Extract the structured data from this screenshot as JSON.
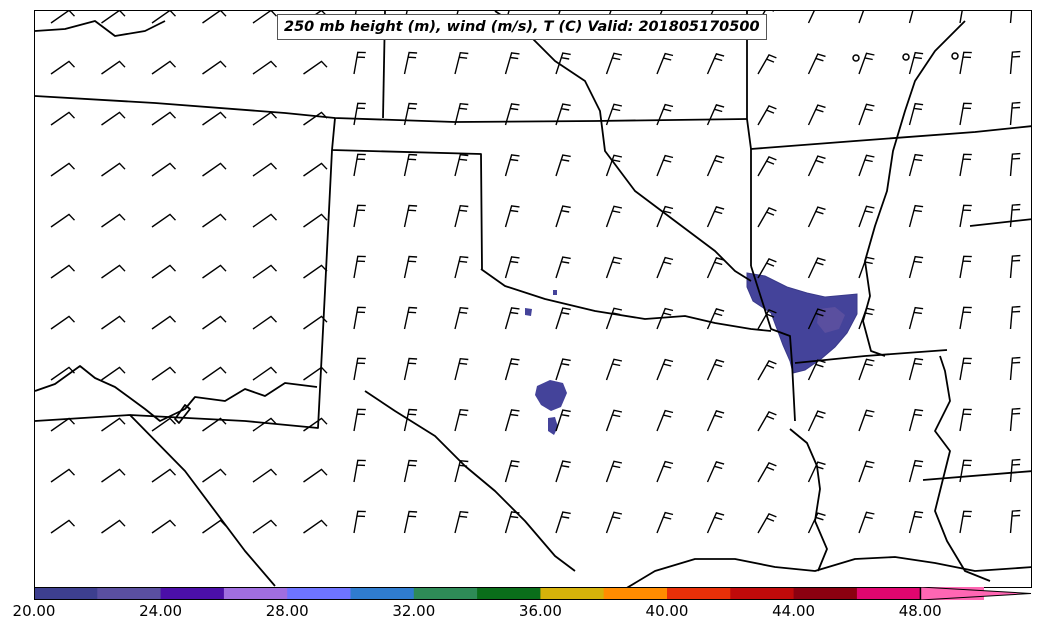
{
  "title": "250 mb height (m), wind (m/s), T (C) Valid: 201805170500",
  "colorbar": {
    "min": 20,
    "max": 51.5,
    "step": 2,
    "colors": [
      "#3d3f8f",
      "#5a4fa0",
      "#4b0fa8",
      "#a06ee0",
      "#6e74ff",
      "#2f7ccf",
      "#2e8b57",
      "#0a6e1a",
      "#d6b20a",
      "#ff8c00",
      "#e83008",
      "#c00a0a",
      "#8b0010",
      "#e0066f",
      "#ff66b3"
    ],
    "tick_labels": [
      "20.00",
      "24.00",
      "28.00",
      "32.00",
      "36.00",
      "40.00",
      "44.00",
      "48.00"
    ],
    "tick_values": [
      20,
      24,
      28,
      32,
      36,
      40,
      44,
      48
    ]
  },
  "shaded_regions": [
    {
      "name": "arkansas-louisiana-cluster",
      "temp_c": 20.5
    },
    {
      "name": "central-texas-cluster",
      "temp_c": 20.5
    }
  ]
}
